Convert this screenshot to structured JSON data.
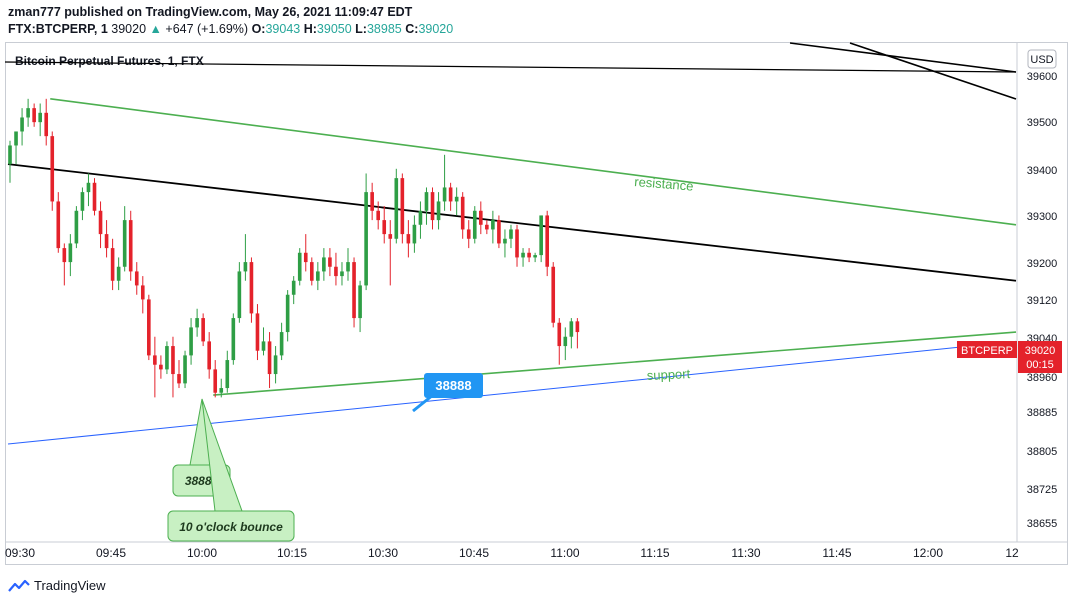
{
  "header": {
    "publisher_line": "zman777 published on TradingView.com, May 26, 2021 11:09:47 EDT",
    "symbol": "FTX:BTCPERP, 1",
    "last": "39020",
    "arrow": "▲",
    "change": "+647 (+1.69%)",
    "o_label": "O:",
    "o_value": "39043",
    "h_label": "H:",
    "h_value": "39050",
    "l_label": "L:",
    "l_value": "38985",
    "c_label": "C:",
    "c_value": "39020"
  },
  "chart_title": "Bitcoin Perpetual Futures, 1, FTX",
  "currency": "USD",
  "footer_brand": "TradingView",
  "colors": {
    "up": "#26a69a",
    "up_candle": "#2e9e45",
    "down": "#e4222b",
    "resistance": "#4caf50",
    "trend": "#000000",
    "blue_line": "#2962ff",
    "label_blue": "#2196f3"
  },
  "annotations": {
    "resistance": "resistance",
    "support": "support",
    "price_bubble": "38888",
    "callout1": "38888",
    "callout2": "10 o'clock bounce",
    "ticker_tag": "BTCPERP",
    "last_price": "39020",
    "countdown": "00:15"
  },
  "chart_data": {
    "type": "candlestick",
    "title": "Bitcoin Perpetual Futures, 1, FTX",
    "y_ticks": [
      "39600",
      "39500",
      "39400",
      "39300",
      "39200",
      "39120",
      "39040",
      "38960",
      "38885",
      "38805",
      "38725",
      "38655"
    ],
    "x_ticks": [
      "09:30",
      "09:45",
      "10:00",
      "10:15",
      "10:30",
      "10:45",
      "11:00",
      "11:15",
      "11:30",
      "11:45",
      "12:00",
      "12"
    ],
    "ylim": [
      38620,
      39660
    ],
    "xlim": [
      "09:30",
      "12:15"
    ],
    "candles": [
      {
        "o": 39380,
        "h": 39430,
        "l": 39340,
        "c": 39420
      },
      {
        "o": 39420,
        "h": 39450,
        "l": 39380,
        "c": 39450
      },
      {
        "o": 39450,
        "h": 39500,
        "l": 39420,
        "c": 39480
      },
      {
        "o": 39480,
        "h": 39520,
        "l": 39460,
        "c": 39500
      },
      {
        "o": 39500,
        "h": 39510,
        "l": 39460,
        "c": 39470
      },
      {
        "o": 39470,
        "h": 39510,
        "l": 39440,
        "c": 39490
      },
      {
        "o": 39490,
        "h": 39520,
        "l": 39420,
        "c": 39440
      },
      {
        "o": 39440,
        "h": 39450,
        "l": 39280,
        "c": 39300
      },
      {
        "o": 39300,
        "h": 39320,
        "l": 39190,
        "c": 39200
      },
      {
        "o": 39200,
        "h": 39210,
        "l": 39120,
        "c": 39170
      },
      {
        "o": 39170,
        "h": 39230,
        "l": 39140,
        "c": 39210
      },
      {
        "o": 39210,
        "h": 39290,
        "l": 39200,
        "c": 39280
      },
      {
        "o": 39280,
        "h": 39330,
        "l": 39260,
        "c": 39320
      },
      {
        "o": 39320,
        "h": 39360,
        "l": 39290,
        "c": 39340
      },
      {
        "o": 39340,
        "h": 39350,
        "l": 39270,
        "c": 39280
      },
      {
        "o": 39280,
        "h": 39300,
        "l": 39200,
        "c": 39230
      },
      {
        "o": 39230,
        "h": 39260,
        "l": 39180,
        "c": 39200
      },
      {
        "o": 39200,
        "h": 39220,
        "l": 39110,
        "c": 39130
      },
      {
        "o": 39130,
        "h": 39180,
        "l": 39110,
        "c": 39160
      },
      {
        "o": 39160,
        "h": 39290,
        "l": 39150,
        "c": 39260
      },
      {
        "o": 39260,
        "h": 39280,
        "l": 39130,
        "c": 39150
      },
      {
        "o": 39150,
        "h": 39170,
        "l": 39100,
        "c": 39120
      },
      {
        "o": 39120,
        "h": 39140,
        "l": 39060,
        "c": 39090
      },
      {
        "o": 39090,
        "h": 39100,
        "l": 38960,
        "c": 38970
      },
      {
        "o": 38970,
        "h": 39010,
        "l": 38880,
        "c": 38950
      },
      {
        "o": 38950,
        "h": 38970,
        "l": 38920,
        "c": 38940
      },
      {
        "o": 38940,
        "h": 39000,
        "l": 38930,
        "c": 38990
      },
      {
        "o": 38990,
        "h": 39010,
        "l": 38880,
        "c": 38930
      },
      {
        "o": 38930,
        "h": 38960,
        "l": 38900,
        "c": 38910
      },
      {
        "o": 38910,
        "h": 38980,
        "l": 38900,
        "c": 38970
      },
      {
        "o": 38970,
        "h": 39050,
        "l": 38950,
        "c": 39030
      },
      {
        "o": 39030,
        "h": 39070,
        "l": 39010,
        "c": 39050
      },
      {
        "o": 39050,
        "h": 39060,
        "l": 38990,
        "c": 39000
      },
      {
        "o": 39000,
        "h": 39020,
        "l": 38920,
        "c": 38940
      },
      {
        "o": 38940,
        "h": 38960,
        "l": 38880,
        "c": 38890
      },
      {
        "o": 38890,
        "h": 38920,
        "l": 38880,
        "c": 38900
      },
      {
        "o": 38900,
        "h": 38980,
        "l": 38890,
        "c": 38960
      },
      {
        "o": 38960,
        "h": 39060,
        "l": 38950,
        "c": 39050
      },
      {
        "o": 39050,
        "h": 39170,
        "l": 39040,
        "c": 39150
      },
      {
        "o": 39150,
        "h": 39230,
        "l": 39130,
        "c": 39170
      },
      {
        "o": 39170,
        "h": 39180,
        "l": 39040,
        "c": 39060
      },
      {
        "o": 39060,
        "h": 39080,
        "l": 38960,
        "c": 38980
      },
      {
        "o": 38980,
        "h": 39030,
        "l": 38970,
        "c": 39000
      },
      {
        "o": 39000,
        "h": 39020,
        "l": 38900,
        "c": 38930
      },
      {
        "o": 38930,
        "h": 38990,
        "l": 38910,
        "c": 38970
      },
      {
        "o": 38970,
        "h": 39040,
        "l": 38960,
        "c": 39020
      },
      {
        "o": 39020,
        "h": 39110,
        "l": 39000,
        "c": 39100
      },
      {
        "o": 39100,
        "h": 39140,
        "l": 39080,
        "c": 39130
      },
      {
        "o": 39130,
        "h": 39200,
        "l": 39120,
        "c": 39190
      },
      {
        "o": 39190,
        "h": 39230,
        "l": 39150,
        "c": 39170
      },
      {
        "o": 39170,
        "h": 39180,
        "l": 39120,
        "c": 39130
      },
      {
        "o": 39130,
        "h": 39170,
        "l": 39110,
        "c": 39150
      },
      {
        "o": 39150,
        "h": 39200,
        "l": 39130,
        "c": 39180
      },
      {
        "o": 39180,
        "h": 39200,
        "l": 39140,
        "c": 39160
      },
      {
        "o": 39160,
        "h": 39190,
        "l": 39120,
        "c": 39140
      },
      {
        "o": 39140,
        "h": 39170,
        "l": 39120,
        "c": 39150
      },
      {
        "o": 39150,
        "h": 39200,
        "l": 39130,
        "c": 39170
      },
      {
        "o": 39170,
        "h": 39180,
        "l": 39030,
        "c": 39050
      },
      {
        "o": 39050,
        "h": 39130,
        "l": 39020,
        "c": 39120
      },
      {
        "o": 39120,
        "h": 39360,
        "l": 39110,
        "c": 39320
      },
      {
        "o": 39320,
        "h": 39340,
        "l": 39260,
        "c": 39280
      },
      {
        "o": 39280,
        "h": 39300,
        "l": 39240,
        "c": 39260
      },
      {
        "o": 39260,
        "h": 39290,
        "l": 39210,
        "c": 39230
      },
      {
        "o": 39230,
        "h": 39260,
        "l": 39120,
        "c": 39220
      },
      {
        "o": 39220,
        "h": 39370,
        "l": 39210,
        "c": 39350
      },
      {
        "o": 39350,
        "h": 39360,
        "l": 39210,
        "c": 39230
      },
      {
        "o": 39230,
        "h": 39260,
        "l": 39180,
        "c": 39210
      },
      {
        "o": 39210,
        "h": 39270,
        "l": 39190,
        "c": 39250
      },
      {
        "o": 39250,
        "h": 39300,
        "l": 39220,
        "c": 39280
      },
      {
        "o": 39280,
        "h": 39330,
        "l": 39250,
        "c": 39320
      },
      {
        "o": 39320,
        "h": 39330,
        "l": 39240,
        "c": 39260
      },
      {
        "o": 39260,
        "h": 39320,
        "l": 39240,
        "c": 39300
      },
      {
        "o": 39300,
        "h": 39400,
        "l": 39280,
        "c": 39330
      },
      {
        "o": 39330,
        "h": 39340,
        "l": 39280,
        "c": 39300
      },
      {
        "o": 39300,
        "h": 39330,
        "l": 39270,
        "c": 39310
      },
      {
        "o": 39310,
        "h": 39320,
        "l": 39220,
        "c": 39240
      },
      {
        "o": 39240,
        "h": 39260,
        "l": 39200,
        "c": 39220
      },
      {
        "o": 39220,
        "h": 39290,
        "l": 39210,
        "c": 39280
      },
      {
        "o": 39280,
        "h": 39300,
        "l": 39230,
        "c": 39250
      },
      {
        "o": 39250,
        "h": 39260,
        "l": 39230,
        "c": 39240
      },
      {
        "o": 39240,
        "h": 39280,
        "l": 39210,
        "c": 39260
      },
      {
        "o": 39260,
        "h": 39270,
        "l": 39200,
        "c": 39210
      },
      {
        "o": 39210,
        "h": 39240,
        "l": 39180,
        "c": 39220
      },
      {
        "o": 39220,
        "h": 39250,
        "l": 39200,
        "c": 39240
      },
      {
        "o": 39240,
        "h": 39250,
        "l": 39160,
        "c": 39180
      },
      {
        "o": 39180,
        "h": 39200,
        "l": 39160,
        "c": 39190
      },
      {
        "o": 39190,
        "h": 39200,
        "l": 39170,
        "c": 39180
      },
      {
        "o": 39180,
        "h": 39190,
        "l": 39170,
        "c": 39185
      },
      {
        "o": 39185,
        "h": 39270,
        "l": 39170,
        "c": 39270
      },
      {
        "o": 39270,
        "h": 39280,
        "l": 39140,
        "c": 39160
      },
      {
        "o": 39160,
        "h": 39170,
        "l": 39030,
        "c": 39040
      },
      {
        "o": 39040,
        "h": 39050,
        "l": 38950,
        "c": 38990
      },
      {
        "o": 38990,
        "h": 39030,
        "l": 38960,
        "c": 39010
      },
      {
        "o": 39010,
        "h": 39050,
        "l": 38985,
        "c": 39043
      },
      {
        "o": 39043,
        "h": 39050,
        "l": 38985,
        "c": 39020
      }
    ],
    "lines": [
      {
        "name": "resistance",
        "x1": "09:35",
        "y1": 39520,
        "x2": "12:15",
        "y2": 39250
      },
      {
        "name": "trend",
        "x1": "09:28",
        "y1": 39380,
        "x2": "12:15",
        "y2": 39130
      },
      {
        "name": "support",
        "x1": "10:02",
        "y1": 38885,
        "x2": "12:15",
        "y2": 39020
      },
      {
        "name": "blue",
        "x1": "09:28",
        "y1": 38780,
        "x2": "12:15",
        "y2": 39000
      }
    ]
  }
}
